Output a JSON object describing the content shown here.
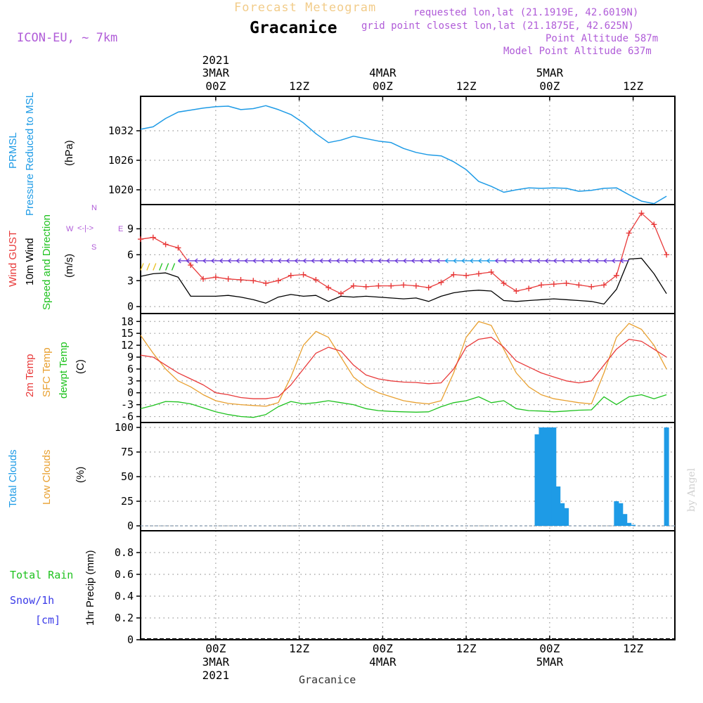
{
  "header": {
    "product": "Forecast Meteogram",
    "location": "Gracanice",
    "model": "ICON-EU, ~ 7km",
    "requested": "requested lon,lat (21.1919E, 42.6019N)",
    "gridpoint": "grid point closest lon,lat (21.1875E, 42.625N)",
    "point_alt": "Point Altitude 587m",
    "model_alt": "Model Point Altitude 637m",
    "footer_location": "Gracanice",
    "watermark": "by Angel"
  },
  "colors": {
    "pressure": "#1e9be6",
    "gust": "#e83a3a",
    "wind": "#000000",
    "temp": "#e83a3a",
    "sfc_temp": "#e8a030",
    "dewpt": "#1fc21f",
    "clouds": "#1e9be6",
    "low_clouds": "#e8a030",
    "purple": "#b05cd8",
    "grid": "#999999"
  },
  "chart_data": [
    {
      "panel": "pressure",
      "type": "line",
      "labels": {
        "line1": "PRMSL",
        "line2": "Pressure Reduced to MSL",
        "unit": "(hPa)"
      },
      "yticks": [
        1020,
        1026,
        1032
      ],
      "ylim": [
        1017,
        1039
      ],
      "x_hours": [
        0,
        3,
        6,
        9,
        12,
        15,
        18,
        21,
        24,
        27,
        30,
        33,
        36,
        39,
        42,
        45,
        48,
        51,
        54,
        57,
        60,
        63,
        66,
        69,
        72,
        75,
        78,
        81,
        84,
        87,
        90,
        93,
        96,
        99,
        102,
        105,
        108,
        111,
        114,
        117,
        120,
        123,
        126
      ],
      "series": [
        {
          "values": [
            1032.3,
            1032.8,
            1034.5,
            1035.8,
            1036.2,
            1036.6,
            1036.9,
            1037.0,
            1036.3,
            1036.5,
            1037.1,
            1036.3,
            1035.3,
            1033.6,
            1031.4,
            1029.6,
            1030.1,
            1030.9,
            1030.4,
            1029.9,
            1029.6,
            1028.4,
            1027.6,
            1027.1,
            1026.9,
            1025.7,
            1024.1,
            1021.7,
            1020.7,
            1019.5,
            1020.0,
            1020.4,
            1020.3,
            1020.4,
            1020.3,
            1019.7,
            1019.9,
            1020.3,
            1020.4,
            1019.0,
            1017.7,
            1017.2,
            1018.7
          ]
        }
      ]
    },
    {
      "panel": "wind",
      "type": "line",
      "labels": {
        "gust": "Wind GUST",
        "wind": "10m Wind",
        "speed_dir": "Speed and Direction",
        "unit": "(m/s)",
        "compass_n": "N",
        "compass_s": "S",
        "compass_w": "W",
        "compass_e": "E"
      },
      "yticks": [
        0,
        3,
        6,
        9
      ],
      "ylim": [
        -0.8,
        11.8
      ],
      "x_hours": [
        0,
        3,
        6,
        9,
        12,
        15,
        18,
        21,
        24,
        27,
        30,
        33,
        36,
        39,
        42,
        45,
        48,
        51,
        54,
        57,
        60,
        63,
        66,
        69,
        72,
        75,
        78,
        81,
        84,
        87,
        90,
        93,
        96,
        99,
        102,
        105,
        108,
        111,
        114,
        117,
        120,
        123,
        126
      ],
      "series": [
        {
          "name": "Wind GUST",
          "values": [
            7.8,
            8.0,
            7.2,
            6.8,
            4.8,
            3.2,
            3.4,
            3.2,
            3.1,
            3.0,
            2.7,
            3.0,
            3.6,
            3.7,
            3.1,
            2.2,
            1.5,
            2.4,
            2.3,
            2.4,
            2.4,
            2.5,
            2.4,
            2.2,
            2.8,
            3.7,
            3.6,
            3.8,
            4.0,
            2.7,
            1.8,
            2.1,
            2.5,
            2.6,
            2.7,
            2.5,
            2.3,
            2.5,
            3.6,
            8.5,
            10.8,
            9.5,
            6.0
          ]
        },
        {
          "name": "10m Wind",
          "values": [
            3.5,
            3.8,
            3.9,
            3.4,
            1.2,
            1.2,
            1.2,
            1.3,
            1.1,
            0.8,
            0.4,
            1.1,
            1.4,
            1.2,
            1.3,
            0.6,
            1.2,
            1.1,
            1.2,
            1.1,
            1.0,
            0.9,
            1.0,
            0.6,
            1.2,
            1.6,
            1.8,
            1.9,
            1.8,
            0.7,
            0.6,
            0.7,
            0.8,
            0.9,
            0.8,
            0.7,
            0.6,
            0.3,
            2.0,
            5.5,
            5.6,
            3.8,
            1.5
          ]
        }
      ]
    },
    {
      "panel": "temperature",
      "type": "line",
      "labels": {
        "temp": "2m Temp",
        "sfc": "SFC Temp",
        "dewpt": "dewpt Temp",
        "unit": "(C)"
      },
      "yticks": [
        -6,
        -3,
        0,
        3,
        6,
        9,
        12,
        15,
        18
      ],
      "ylim": [
        -7.5,
        20
      ],
      "x_hours": [
        0,
        3,
        6,
        9,
        12,
        15,
        18,
        21,
        24,
        27,
        30,
        33,
        36,
        39,
        42,
        45,
        48,
        51,
        54,
        57,
        60,
        63,
        66,
        69,
        72,
        75,
        78,
        81,
        84,
        87,
        90,
        93,
        96,
        99,
        102,
        105,
        108,
        111,
        114,
        117,
        120,
        123,
        126
      ],
      "series": [
        {
          "name": "2m Temp",
          "values": [
            9.5,
            9.0,
            7.0,
            5.0,
            3.5,
            2.0,
            0.0,
            -0.5,
            -1.2,
            -1.5,
            -1.5,
            -1.0,
            2.0,
            6.0,
            10.0,
            11.5,
            10.5,
            7.0,
            4.5,
            3.5,
            3.0,
            2.7,
            2.6,
            2.3,
            2.5,
            6.0,
            11.5,
            13.5,
            14.0,
            11.5,
            8.0,
            6.5,
            5.0,
            4.0,
            3.0,
            2.5,
            3.0,
            7.0,
            11.0,
            13.5,
            13.0,
            11.0,
            9.0
          ]
        },
        {
          "name": "SFC Temp",
          "values": [
            14.5,
            10.0,
            6.0,
            3.0,
            1.5,
            -0.5,
            -2.0,
            -2.7,
            -3.0,
            -3.2,
            -3.4,
            -2.5,
            4.0,
            12.0,
            15.5,
            14.0,
            9.0,
            4.0,
            1.5,
            0.0,
            -1.0,
            -2.0,
            -2.5,
            -2.8,
            -2.0,
            5.0,
            14.0,
            18.0,
            17.0,
            11.0,
            5.0,
            1.5,
            -0.5,
            -1.5,
            -2.0,
            -2.5,
            -2.8,
            5.0,
            14.0,
            17.5,
            16.0,
            12.0,
            6.0
          ]
        },
        {
          "name": "dewpt Temp",
          "values": [
            -4.0,
            -3.2,
            -2.2,
            -2.3,
            -2.8,
            -3.8,
            -4.8,
            -5.5,
            -6.0,
            -6.2,
            -5.5,
            -3.5,
            -2.2,
            -2.8,
            -2.5,
            -2.0,
            -2.5,
            -3.0,
            -4.0,
            -4.5,
            -4.7,
            -4.8,
            -4.9,
            -4.8,
            -3.5,
            -2.5,
            -2.0,
            -1.0,
            -2.5,
            -2.0,
            -4.0,
            -4.5,
            -4.6,
            -4.8,
            -4.6,
            -4.4,
            -4.3,
            -1.0,
            -3.0,
            -1.0,
            -0.5,
            -1.5,
            -0.5
          ]
        }
      ]
    },
    {
      "panel": "clouds",
      "type": "bar",
      "labels": {
        "total": "Total Clouds",
        "low": "Low Clouds",
        "unit": "(%)"
      },
      "yticks": [
        0,
        25,
        50,
        75,
        100
      ],
      "ylim": [
        -5,
        105
      ],
      "x_hours": [
        95,
        96,
        97,
        98,
        99,
        100,
        101,
        102,
        114,
        115,
        116,
        117,
        118,
        126
      ],
      "values": [
        93,
        100,
        100,
        100,
        100,
        40,
        23,
        18,
        25,
        23,
        12,
        3,
        1,
        100
      ]
    },
    {
      "panel": "precip",
      "type": "line",
      "labels": {
        "total_rain": "Total  Rain",
        "snow": "Snow/1h",
        "cm": "[cm]",
        "precip": "1hr Precip (mm)"
      },
      "yticks": [
        0,
        0.2,
        0.4,
        0.6,
        0.8
      ],
      "yticklabels": [
        "0",
        "0.2",
        "0.4",
        "0.6",
        "0.8"
      ],
      "ylim": [
        0,
        1.0
      ],
      "x_hours": [
        0,
        126
      ],
      "values": [
        0,
        0
      ]
    }
  ],
  "time_axis": {
    "top_year": "2021",
    "bottom_year": "2021",
    "ticks": [
      {
        "hour": 18,
        "label": "00Z",
        "date": "3MAR"
      },
      {
        "hour": 38,
        "label": "12Z",
        "date": ""
      },
      {
        "hour": 58,
        "label": "00Z",
        "date": "4MAR"
      },
      {
        "hour": 78,
        "label": "12Z",
        "date": ""
      },
      {
        "hour": 98,
        "label": "00Z",
        "date": "5MAR"
      },
      {
        "hour": 118,
        "label": "12Z",
        "date": ""
      }
    ]
  }
}
